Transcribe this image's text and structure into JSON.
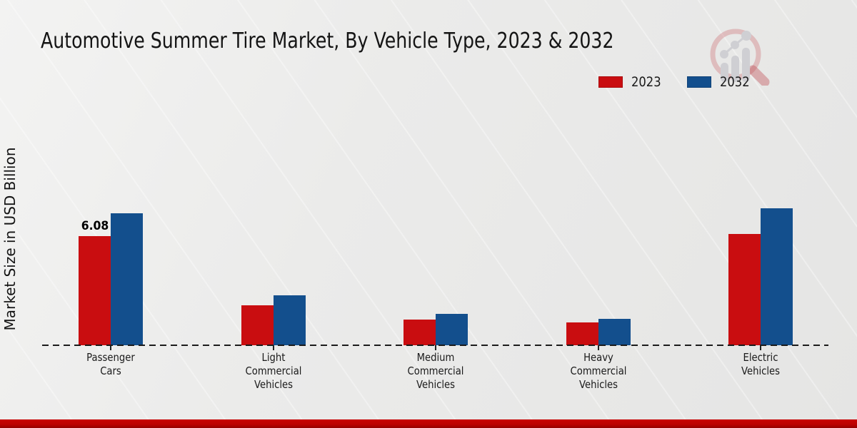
{
  "title": "Automotive Summer Tire Market, By Vehicle Type, 2023 & 2032",
  "y_axis_label": "Market Size in USD Billion",
  "legend": {
    "items": [
      {
        "label": "2023",
        "color": "#c90d10"
      },
      {
        "label": "2032",
        "color": "#134f8d"
      }
    ]
  },
  "logo_name": "market-research-magnifier-logo",
  "footer_color": "#c40000",
  "chart_data": {
    "type": "bar",
    "title": "Automotive Summer Tire Market, By Vehicle Type, 2023 & 2032",
    "xlabel": "",
    "ylabel": "Market Size in USD Billion",
    "ylim": [
      0,
      8
    ],
    "grid": false,
    "legend_position": "top-right",
    "baseline_style": "dashed",
    "categories": [
      "Passenger Cars",
      "Light Commercial Vehicles",
      "Medium Commercial Vehicles",
      "Heavy Commercial Vehicles",
      "Electric Vehicles"
    ],
    "category_lines": [
      [
        "Passenger",
        "Cars"
      ],
      [
        "Light",
        "Commercial",
        "Vehicles"
      ],
      [
        "Medium",
        "Commercial",
        "Vehicles"
      ],
      [
        "Heavy",
        "Commercial",
        "Vehicles"
      ],
      [
        "Electric",
        "Vehicles"
      ]
    ],
    "series": [
      {
        "name": "2023",
        "color": "#c90d10",
        "values": [
          6.08,
          2.25,
          1.43,
          1.26,
          6.2
        ]
      },
      {
        "name": "2032",
        "color": "#134f8d",
        "values": [
          7.38,
          2.77,
          1.74,
          1.47,
          7.63
        ]
      }
    ],
    "bar_labels": [
      {
        "series": 0,
        "category": 0,
        "text": "6.08"
      }
    ]
  }
}
